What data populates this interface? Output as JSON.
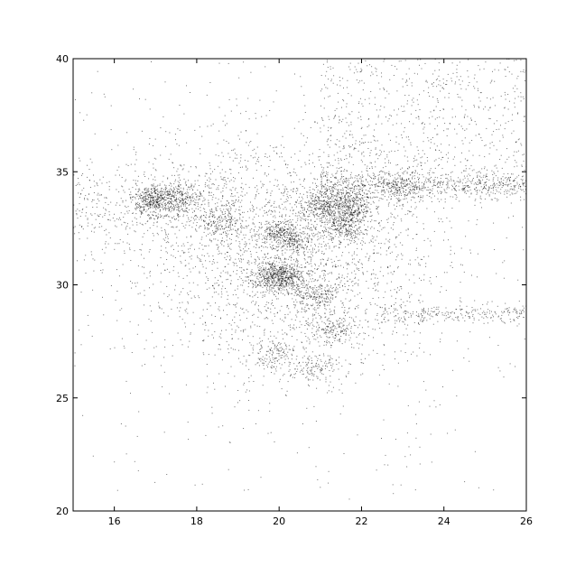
{
  "chart_data": {
    "type": "scatter",
    "title": "",
    "xlabel": "",
    "ylabel": "",
    "xlim": [
      15,
      26
    ],
    "ylim": [
      20,
      40
    ],
    "x_ticks": [
      "16",
      "18",
      "20",
      "22",
      "24",
      "26"
    ],
    "y_ticks": [
      "20",
      "25",
      "30",
      "35",
      "40"
    ],
    "grid": false,
    "legend": "none",
    "marker_color": "#000000",
    "point_density_note_clusters": [
      {
        "x": 17.0,
        "y": 33.7,
        "weight": 0.09
      },
      {
        "x": 17.6,
        "y": 33.9,
        "weight": 0.04
      },
      {
        "x": 20.0,
        "y": 30.4,
        "weight": 0.12
      },
      {
        "x": 20.0,
        "y": 32.3,
        "weight": 0.05
      },
      {
        "x": 20.4,
        "y": 31.9,
        "weight": 0.03
      },
      {
        "x": 21.1,
        "y": 33.5,
        "weight": 0.07
      },
      {
        "x": 21.8,
        "y": 33.5,
        "weight": 0.06
      },
      {
        "x": 21.6,
        "y": 32.6,
        "weight": 0.05
      },
      {
        "x": 20.9,
        "y": 29.6,
        "weight": 0.04
      },
      {
        "x": 21.3,
        "y": 28.0,
        "weight": 0.03
      },
      {
        "x": 19.9,
        "y": 26.9,
        "weight": 0.025
      },
      {
        "x": 20.9,
        "y": 26.3,
        "weight": 0.025
      },
      {
        "x": 23.0,
        "y": 34.3,
        "weight": 0.03
      },
      {
        "x": 18.6,
        "y": 32.8,
        "weight": 0.03
      }
    ]
  }
}
